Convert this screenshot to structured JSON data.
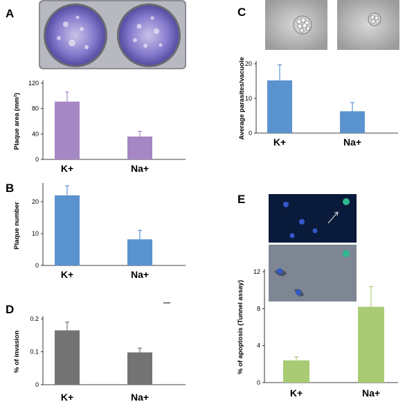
{
  "panels": [
    {
      "letter": "A"
    },
    {
      "letter": "B"
    },
    {
      "letter": "C"
    },
    {
      "letter": "D"
    },
    {
      "letter": "E"
    }
  ],
  "colors": {
    "purple": "#a587c4",
    "blue": "#5b93cf",
    "gray": "#737373",
    "green": "#a9cb74"
  },
  "chart_data": [
    {
      "panel": "A",
      "type": "bar",
      "categories": [
        "K+",
        "Na+"
      ],
      "values": [
        91,
        36
      ],
      "errors": [
        15,
        8
      ],
      "ylabel": "Plaque area (mm²)",
      "ylim": [
        0,
        120
      ],
      "yticks": [
        0,
        40,
        80,
        120
      ],
      "color": "purple",
      "grid": false
    },
    {
      "panel": "B",
      "type": "bar",
      "categories": [
        "K+",
        "Na+"
      ],
      "values": [
        22,
        8.2
      ],
      "errors": [
        3,
        2.8
      ],
      "ylabel": "Plaque number",
      "ylim": [
        0,
        25
      ],
      "yticks": [
        0,
        10,
        20
      ],
      "color": "blue",
      "grid": false
    },
    {
      "panel": "C",
      "type": "bar",
      "categories": [
        "K+",
        "Na+"
      ],
      "values": [
        15.2,
        6.3
      ],
      "errors": [
        4.5,
        2.5
      ],
      "ylabel": "Average parasites/vacuole",
      "ylim": [
        0,
        20
      ],
      "yticks": [
        0,
        10,
        20
      ],
      "color": "blue",
      "grid": false
    },
    {
      "panel": "D",
      "type": "bar",
      "categories": [
        "K+",
        "Na+"
      ],
      "values": [
        0.165,
        0.098
      ],
      "errors": [
        0.025,
        0.013
      ],
      "ylabel": "% of invasion",
      "ylim": [
        0,
        0.2
      ],
      "yticks": [
        0,
        0.1,
        0.2
      ],
      "color": "gray",
      "grid": false
    },
    {
      "panel": "E",
      "type": "bar",
      "categories": [
        "K+",
        "Na+"
      ],
      "values": [
        2.4,
        8.2
      ],
      "errors": [
        0.4,
        2.2
      ],
      "ylabel": "% of apoptosis (Tunnel assay)",
      "ylim": [
        0,
        12
      ],
      "yticks": [
        0,
        4,
        8,
        12
      ],
      "color": "green",
      "grid": false
    }
  ]
}
